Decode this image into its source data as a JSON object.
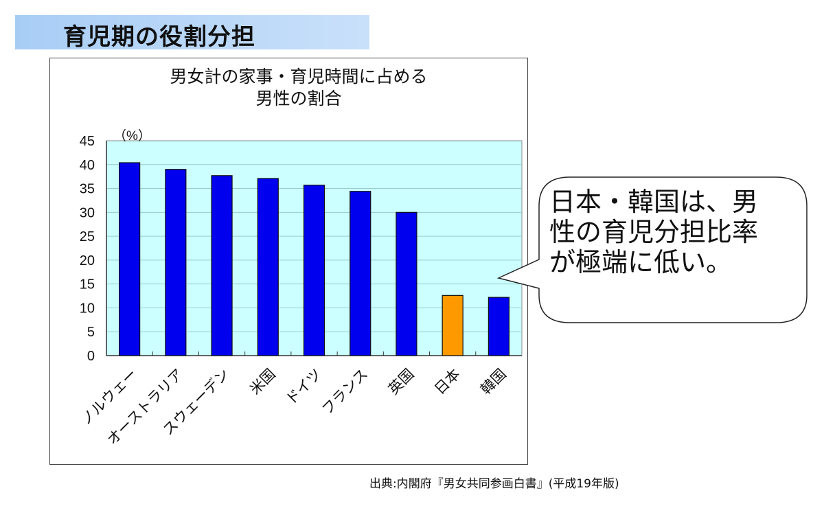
{
  "slide_title": "育児期の役割分担",
  "callout": {
    "lines": [
      "日本・韓国は、男",
      "性の育児分担比率",
      "が極端に低い。"
    ]
  },
  "source": "出典:内閣府『男女共同参画白書』(平成19年版)",
  "colors": {
    "bar": "#0000ee",
    "highlight": "#ff9900",
    "plot_bg": "#ccffff"
  },
  "chart_data": {
    "type": "bar",
    "title": [
      "男女計の家事・育児時間に占める",
      "男性の割合"
    ],
    "ylabel": "（%）",
    "xlabel": "",
    "categories": [
      "ノルウェー",
      "オーストラリア",
      "スウェーデン",
      "米国",
      "ドイツ",
      "フランス",
      "英国",
      "日本",
      "韓国"
    ],
    "values": [
      40.4,
      39.0,
      37.7,
      37.1,
      35.7,
      34.4,
      30.0,
      12.6,
      12.2
    ],
    "highlight": [
      "日本"
    ],
    "ylim": [
      0,
      45
    ],
    "yticks": [
      0,
      5,
      10,
      15,
      20,
      25,
      30,
      35,
      40,
      45
    ],
    "grid": true,
    "legend": "none"
  }
}
